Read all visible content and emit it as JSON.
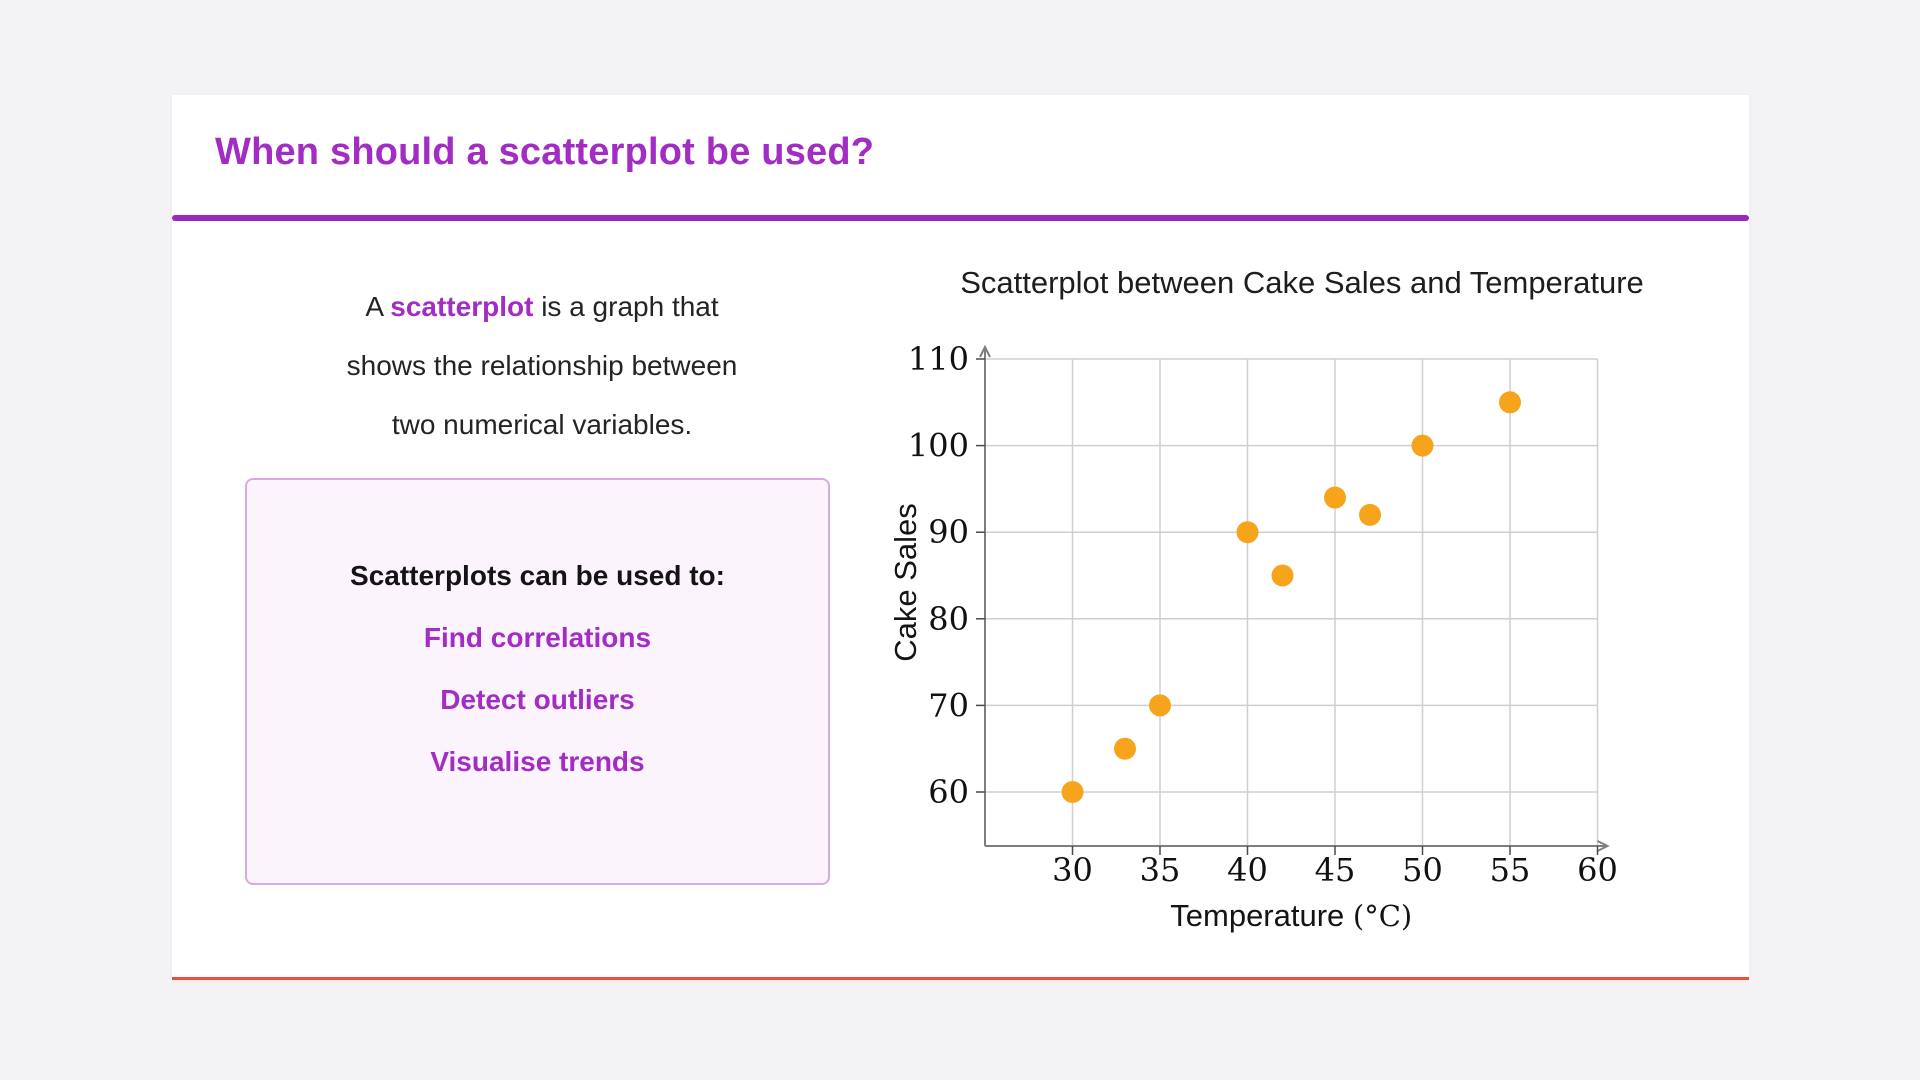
{
  "slide": {
    "title": "When should a scatterplot be used?"
  },
  "intro": {
    "line1_pre": "A ",
    "line1_bold": "scatterplot",
    "line1_post": " is a graph that",
    "line2": "shows the relationship between",
    "line3": "two numerical variables."
  },
  "box": {
    "heading": "Scatterplots can be used to:",
    "items": [
      "Find correlations",
      "Detect outliers",
      "Visualise trends"
    ]
  },
  "colors": {
    "accent_purple": "#A22CC4",
    "divider_purple": "#9928BE",
    "point_orange": "#F7A41D",
    "card_bottom_line": "#E8503B",
    "grid_gray": "#cfcfcf",
    "spine_gray": "#7e7e7e"
  },
  "chart_data": {
    "type": "scatter",
    "title": "Scatterplot between Cake Sales and Temperature",
    "xlabel": "Temperature",
    "xlabel_unit": "(°C)",
    "ylabel": "Cake Sales",
    "x": [
      30,
      33,
      35,
      40,
      42,
      45,
      47,
      50,
      55
    ],
    "y": [
      60,
      65,
      70,
      90,
      85,
      94,
      92,
      100,
      105
    ],
    "xticks": [
      30,
      35,
      40,
      45,
      50,
      55,
      60
    ],
    "yticks": [
      60,
      70,
      80,
      90,
      100,
      110
    ],
    "xlim": [
      25,
      61
    ],
    "ylim": [
      52,
      113
    ],
    "grid": true,
    "legend": "none",
    "point_color": "#F7A41D"
  }
}
